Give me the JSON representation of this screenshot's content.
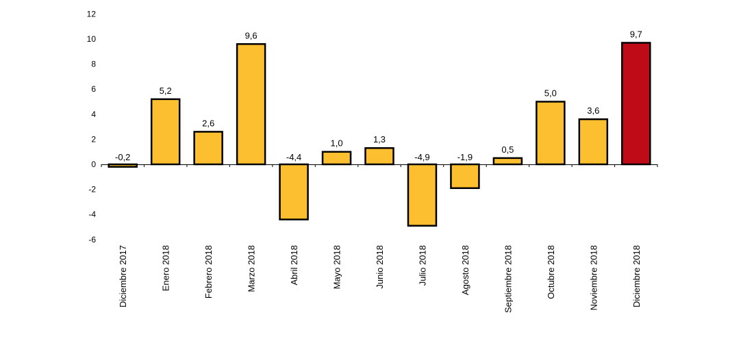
{
  "chart_data": {
    "type": "bar",
    "categories": [
      "Diciembre 2017",
      "Enero 2018",
      "Febrero 2018",
      "Marzo 2018",
      "Abril 2018",
      "Mayo 2018",
      "Junio 2018",
      "Julio 2018",
      "Agosto 2018",
      "Septiembre 2018",
      "Octubre 2018",
      "Noviembre 2018",
      "Diciembre 2018"
    ],
    "values": [
      -0.2,
      5.2,
      2.6,
      9.6,
      -4.4,
      1.0,
      1.3,
      -4.9,
      -1.9,
      0.5,
      5.0,
      3.6,
      9.7
    ],
    "data_labels": [
      "-0,2",
      "5,2",
      "2,6",
      "9,6",
      "-4,4",
      "1,0",
      "1,3",
      "-4,9",
      "-1,9",
      "0,5",
      "5,0",
      "3,6",
      "9,7"
    ],
    "ylim": [
      -6,
      12
    ],
    "yticks": [
      -6,
      -4,
      -2,
      0,
      2,
      4,
      6,
      8,
      10,
      12
    ],
    "ytick_labels": [
      "-6",
      "-4",
      "-2",
      "0",
      "2",
      "4",
      "6",
      "8",
      "10",
      "12"
    ],
    "highlight_index": 12,
    "grid": false,
    "colors": {
      "bar": "#FBBF2F",
      "highlight": "#BF0A17",
      "outline": "#000000"
    }
  }
}
